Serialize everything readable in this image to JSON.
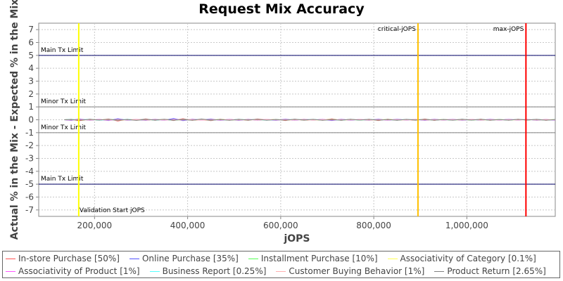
{
  "chart_data": {
    "type": "line",
    "title": "Request Mix Accuracy",
    "xlabel": "jOPS",
    "ylabel": "Actual % in the Mix - Expected % in the Mix",
    "xlim": [
      80000,
      1190000
    ],
    "ylim": [
      -7.5,
      7.5
    ],
    "x_ticks": [
      200000,
      400000,
      600000,
      800000,
      1000000
    ],
    "x_tick_labels": [
      "200,000",
      "400,000",
      "600,000",
      "800,000",
      "1,000,000"
    ],
    "y_ticks": [
      -7,
      -6,
      -5,
      -4,
      -3,
      -2,
      -1,
      0,
      1,
      2,
      3,
      4,
      5,
      6,
      7
    ],
    "grid": true,
    "reference_lines": [
      {
        "label": "Main Tx Limit",
        "y": 5,
        "color": "#000066"
      },
      {
        "label": "Minor Tx Limit",
        "y": 1,
        "color": "#808080"
      },
      {
        "label": "Minor Tx Limit",
        "y": -1,
        "color": "#808080"
      },
      {
        "label": "Main Tx Limit",
        "y": -5,
        "color": "#000066"
      }
    ],
    "vertical_markers": [
      {
        "label": "Validation Start jOPS",
        "x": 166000,
        "color": "#ffff00"
      },
      {
        "label": "critical-jOPS",
        "x": 895000,
        "color": "#ffc000"
      },
      {
        "label": "max-jOPS",
        "x": 1127000,
        "color": "#ff0000"
      }
    ],
    "x": [
      135000,
      150000,
      166000,
      190000,
      210000,
      230000,
      250000,
      270000,
      290000,
      310000,
      330000,
      350000,
      370000,
      390000,
      410000,
      430000,
      450000,
      470000,
      490000,
      510000,
      530000,
      550000,
      570000,
      590000,
      610000,
      630000,
      650000,
      670000,
      690000,
      710000,
      730000,
      750000,
      770000,
      790000,
      810000,
      830000,
      850000,
      870000,
      890000,
      910000,
      930000,
      950000,
      970000,
      990000,
      1010000,
      1030000,
      1050000,
      1070000,
      1090000,
      1110000,
      1130000,
      1150000,
      1170000,
      1190000
    ],
    "series": [
      {
        "name": "In-store Purchase [50%]",
        "color": "#ff5555",
        "values": [
          0,
          0.04,
          -0.08,
          0.05,
          -0.03,
          0.06,
          -0.09,
          0.04,
          -0.02,
          0.07,
          -0.05,
          0.03,
          -0.06,
          0.08,
          -0.04,
          0.02,
          -0.07,
          0.05,
          -0.03,
          0.04,
          -0.05,
          0.06,
          -0.02,
          0.03,
          -0.06,
          0.05,
          -0.04,
          0.02,
          -0.03,
          0.07,
          -0.05,
          0.03,
          -0.02,
          0.04,
          -0.06,
          0.05,
          -0.03,
          0.02,
          -0.04,
          0.06,
          -0.05,
          0.03,
          -0.02,
          0.04,
          -0.03,
          0.05,
          -0.04,
          0.02,
          -0.03,
          0.04,
          -0.02,
          0.03,
          -0.04,
          0.02
        ]
      },
      {
        "name": "Online Purchase [35%]",
        "color": "#5555ff",
        "values": [
          0,
          -0.05,
          0.07,
          -0.04,
          0.03,
          -0.06,
          0.08,
          -0.03,
          0.02,
          -0.05,
          0.04,
          -0.03,
          0.1,
          -0.07,
          0.05,
          -0.02,
          0.06,
          -0.04,
          0.03,
          -0.05,
          0.04,
          -0.03,
          0.02,
          -0.04,
          0.05,
          -0.03,
          0.04,
          -0.02,
          0.03,
          -0.06,
          0.04,
          -0.03,
          0.02,
          -0.04,
          0.05,
          -0.03,
          0.04,
          -0.02,
          0.03,
          -0.05,
          0.04,
          -0.02,
          0.03,
          -0.04,
          0.02,
          -0.03,
          0.04,
          -0.02,
          0.03,
          -0.02,
          0.03,
          -0.04,
          0.02,
          -0.03
        ]
      },
      {
        "name": "Installment Purchase [10%]",
        "color": "#55ff55",
        "values": [
          0,
          0.02,
          -0.03,
          0.02,
          -0.02,
          0.03,
          -0.02,
          0.01,
          -0.02,
          0.02,
          -0.01,
          0.02,
          -0.02,
          0.01,
          -0.02,
          0.02,
          -0.01,
          0.02,
          -0.02,
          0.01,
          -0.01,
          0.02,
          -0.02,
          0.01,
          -0.01,
          0.02,
          -0.01,
          0.01,
          -0.02,
          0.02,
          -0.01,
          0.01,
          -0.02,
          0.01,
          -0.01,
          0.02,
          -0.01,
          0.01,
          -0.01,
          0.02,
          -0.01,
          0.01,
          -0.01,
          0.01,
          -0.02,
          0.01,
          -0.01,
          0.01,
          -0.01,
          0.01,
          -0.01,
          0.01,
          -0.01,
          0.01
        ]
      },
      {
        "name": "Associativity of Category [0.1%]",
        "color": "#ffff55",
        "values": [
          0,
          0.01,
          -0.01,
          0.01,
          0,
          0.01,
          -0.01,
          0,
          0.01,
          -0.01,
          0,
          0.01,
          -0.01,
          0,
          0.01,
          -0.01,
          0,
          0.01,
          -0.01,
          0,
          0.01,
          -0.01,
          0,
          0.01,
          -0.01,
          0,
          0.01,
          -0.01,
          0,
          0.01,
          -0.01,
          0,
          0.01,
          -0.01,
          0,
          0.01,
          -0.01,
          0,
          0.01,
          -0.01,
          0,
          0.01,
          -0.01,
          0,
          0.01,
          -0.01,
          0,
          0.01,
          -0.01,
          0,
          0.01,
          -0.01,
          0,
          0.01
        ]
      },
      {
        "name": "Associativity of Product [1%]",
        "color": "#ff55ff",
        "values": [
          0,
          -0.02,
          0.03,
          -0.02,
          0.02,
          -0.03,
          0.02,
          -0.01,
          0.02,
          -0.02,
          0.01,
          -0.02,
          0.02,
          -0.01,
          0.02,
          -0.02,
          0.01,
          -0.02,
          0.02,
          -0.01,
          0.01,
          -0.02,
          0.02,
          -0.01,
          0.01,
          -0.02,
          0.01,
          -0.01,
          0.02,
          -0.02,
          0.01,
          -0.01,
          0.02,
          -0.01,
          0.01,
          -0.02,
          0.01,
          -0.01,
          0.01,
          -0.02,
          0.01,
          -0.01,
          0.01,
          -0.01,
          0.02,
          -0.01,
          0.01,
          -0.01,
          0.01,
          -0.01,
          0.01,
          -0.01,
          0.01,
          -0.01
        ]
      },
      {
        "name": "Business Report [0.25%]",
        "color": "#55ffff",
        "values": [
          0,
          0.03,
          -0.02,
          0.04,
          -0.03,
          0.02,
          -0.04,
          0.03,
          -0.02,
          0.04,
          -0.03,
          0.02,
          -0.04,
          0.03,
          -0.02,
          0.03,
          -0.04,
          0.02,
          -0.03,
          0.04,
          -0.02,
          0.03,
          -0.04,
          0.02,
          -0.03,
          0.04,
          -0.02,
          0.03,
          -0.03,
          0.02,
          -0.04,
          0.03,
          -0.02,
          0.03,
          -0.03,
          0.02,
          -0.04,
          0.03,
          -0.02,
          0.03,
          -0.03,
          0.02,
          -0.03,
          0.04,
          -0.02,
          0.03,
          -0.03,
          0.02,
          -0.03,
          0.03,
          -0.02,
          0.03,
          -0.03,
          0.02
        ]
      },
      {
        "name": "Customer Buying Behavior [1%]",
        "color": "#ffafaf",
        "values": [
          0,
          -0.01,
          0.02,
          -0.02,
          0.01,
          -0.02,
          0.02,
          -0.01,
          0.01,
          -0.02,
          0.02,
          -0.01,
          0.01,
          -0.02,
          0.01,
          -0.01,
          0.02,
          -0.01,
          0.01,
          -0.02,
          0.01,
          -0.01,
          0.02,
          -0.01,
          0.01,
          -0.01,
          0.02,
          -0.01,
          0.01,
          -0.02,
          0.01,
          -0.01,
          0.01,
          -0.02,
          0.01,
          -0.01,
          0.01,
          -0.01,
          0.02,
          -0.01,
          0.01,
          -0.01,
          0.01,
          -0.02,
          0.01,
          -0.01,
          0.01,
          -0.01,
          0.01,
          -0.01,
          0.01,
          -0.01,
          0.01,
          -0.01
        ]
      },
      {
        "name": "Product Return [2.65%]",
        "color": "#808080",
        "values": [
          0,
          0.02,
          -0.04,
          0.03,
          -0.02,
          0.04,
          -0.03,
          0.02,
          -0.05,
          0.03,
          -0.02,
          0.04,
          -0.03,
          0.02,
          -0.04,
          0.06,
          -0.03,
          0.02,
          -0.04,
          0.03,
          -0.02,
          0.04,
          -0.03,
          0.02,
          -0.03,
          0.04,
          -0.02,
          0.03,
          -0.04,
          0.02,
          -0.03,
          0.04,
          -0.02,
          0.03,
          -0.03,
          0.02,
          -0.04,
          0.03,
          -0.02,
          0.03,
          -0.03,
          0.02,
          -0.03,
          0.04,
          -0.02,
          0.03,
          -0.03,
          0.02,
          -0.03,
          0.03,
          -0.02,
          0.03,
          -0.03,
          0.02
        ]
      }
    ]
  }
}
